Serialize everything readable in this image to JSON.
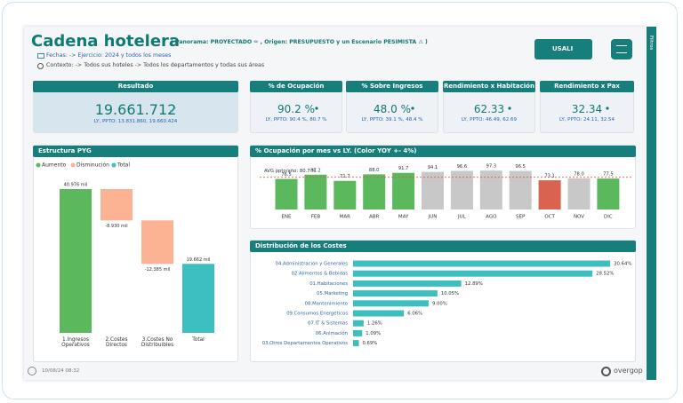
{
  "header": {
    "title": "Cadena hotelera",
    "scenario": "( Panorama: PROYECTADO ✏ , Origen: PRESUPUESTO y un Escenario PESIMISTA ⚠ )",
    "dates": "Fechas: -> Ejercicio: 2024 y todos los meses",
    "context": "Contexto: -> Todos sus hoteles -> Todos los departamentos y todas sus áreas",
    "usali_button": "USALI"
  },
  "kpis": [
    {
      "title": "Resultado",
      "value": "19.661.712",
      "reference": "LY, PPTO: 13.831.860, 19.660.424"
    },
    {
      "title": "% de Ocupación",
      "value": "90.2 %",
      "reference": "LY, PPTO: 90.4 %, 80.7 %"
    },
    {
      "title": "% Sobre Ingresos",
      "value": "48.0 %",
      "reference": "LY, PPTO: 39.1 %, 48.4 %"
    },
    {
      "title": "Rendimiento x Habitación",
      "value": "62.33",
      "reference": "LY, PPTO: 46.49, 62.69"
    },
    {
      "title": "Rendimiento x Pax",
      "value": "32.34",
      "reference": "LY, PPTO: 24.11, 32.54"
    }
  ],
  "chart_data": [
    {
      "type": "waterfall",
      "title": "Estructura PYG",
      "categories": [
        "1.Ingresos Operativos",
        "2.Costes Directos",
        "3.Costes No Distribuibles",
        "Total"
      ],
      "values": [
        40976,
        -8930,
        -12385,
        19662
      ],
      "value_labels": [
        "40.976 mil",
        "-8.930 mil",
        "-12.385 mil",
        "19.662 mil"
      ],
      "legend": [
        {
          "name": "Aumento",
          "color": "#5cb85c"
        },
        {
          "name": "Disminución",
          "color": "#fbb394"
        },
        {
          "name": "Total",
          "color": "#3dbfbf"
        }
      ]
    },
    {
      "type": "bar",
      "title": "% Ocupación por mes vs LY. (Color YOY +- 4%)",
      "categories": [
        "ENE",
        "FEB",
        "MAR",
        "ABR",
        "MAY",
        "JUN",
        "JUL",
        "AGO",
        "SEP",
        "OCT",
        "NOV",
        "DIC"
      ],
      "values": [
        76.5,
        87.2,
        71.7,
        88.0,
        91.7,
        94.1,
        96.6,
        97.3,
        96.5,
        73.1,
        78.0,
        77.5
      ],
      "value_labels": [
        "76.5",
        "87.2",
        "71.7",
        "88.0",
        "91.7",
        "94.1",
        "96.6",
        "97.3",
        "96.5",
        "73.1",
        "78.0",
        "77.5"
      ],
      "colors": [
        "#5cb85c",
        "#5cb85c",
        "#5cb85c",
        "#5cb85c",
        "#5cb85c",
        "#c8c8c8",
        "#c8c8c8",
        "#c8c8c8",
        "#c8c8c8",
        "#d9634f",
        "#c8c8c8",
        "#5cb85c"
      ],
      "ylim": [
        0,
        100
      ],
      "reference_line": {
        "value": 80.7,
        "label": "AVG ppto/año: 80.7 %",
        "color": "#e05a4f"
      }
    },
    {
      "type": "hbar",
      "title": "Distribución de los Costes",
      "categories": [
        "04.Administración y Generales",
        "02.Alimentos & Bebidas",
        "01.Habitaciones",
        "05.Marketing",
        "08.Mantenimiento",
        "09.Consumos Energéticos",
        "07.IT & Sistemas",
        "06.Animación",
        "03.Otros Departamentos Operativos"
      ],
      "values": [
        30.64,
        28.52,
        12.89,
        10.05,
        9.0,
        6.06,
        1.26,
        1.09,
        0.69
      ],
      "value_labels": [
        "30.64%",
        "28.52%",
        "12.89%",
        "10.05%",
        "9.00%",
        "6.06%",
        "1.26%",
        "1.09%",
        "0.69%"
      ],
      "color": "#3dbfbf",
      "xlim": [
        0,
        32
      ]
    }
  ],
  "footer": {
    "timestamp": "10/08/24 08:32",
    "logo": "overgop"
  },
  "sidebar": {
    "label": "Filtros"
  }
}
